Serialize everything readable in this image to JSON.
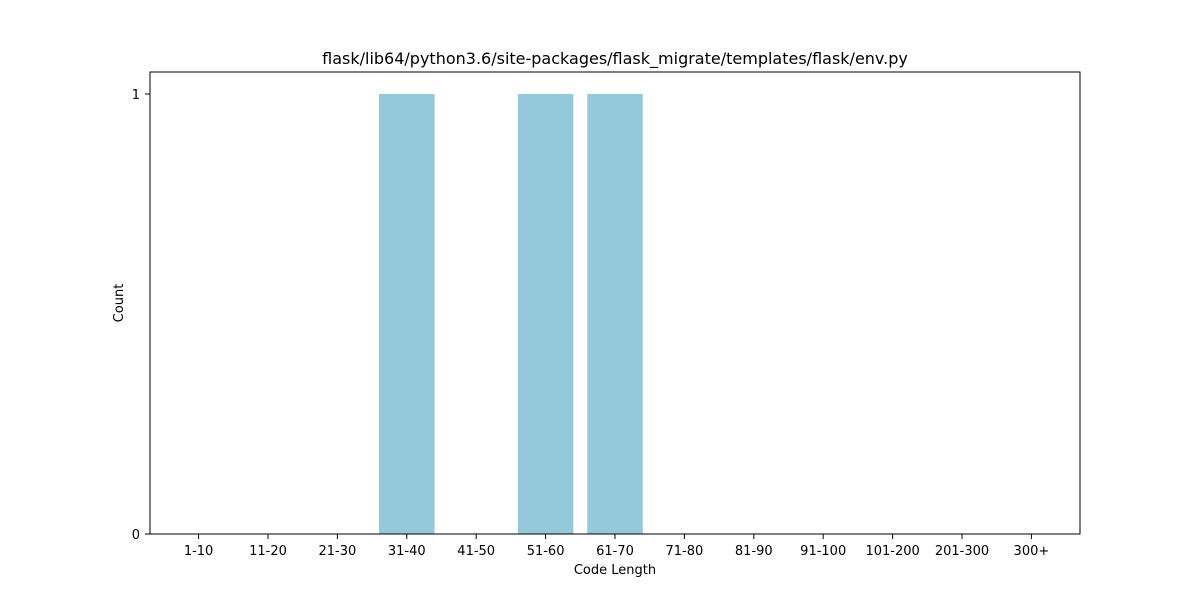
{
  "chart_data": {
    "type": "bar",
    "title": "flask/lib64/python3.6/site-packages/flask_migrate/templates/flask/env.py",
    "xlabel": "Code Length",
    "ylabel": "Count",
    "categories": [
      "1-10",
      "11-20",
      "21-30",
      "31-40",
      "41-50",
      "51-60",
      "61-70",
      "71-80",
      "81-90",
      "91-100",
      "101-200",
      "201-300",
      "300+"
    ],
    "values": [
      0,
      0,
      0,
      1,
      0,
      1,
      1,
      0,
      0,
      0,
      0,
      0,
      0
    ],
    "ylim": [
      0,
      1.05
    ],
    "yticks": [
      0,
      1
    ],
    "bar_color": "#96c8dc",
    "grid": false,
    "legend": "none"
  }
}
